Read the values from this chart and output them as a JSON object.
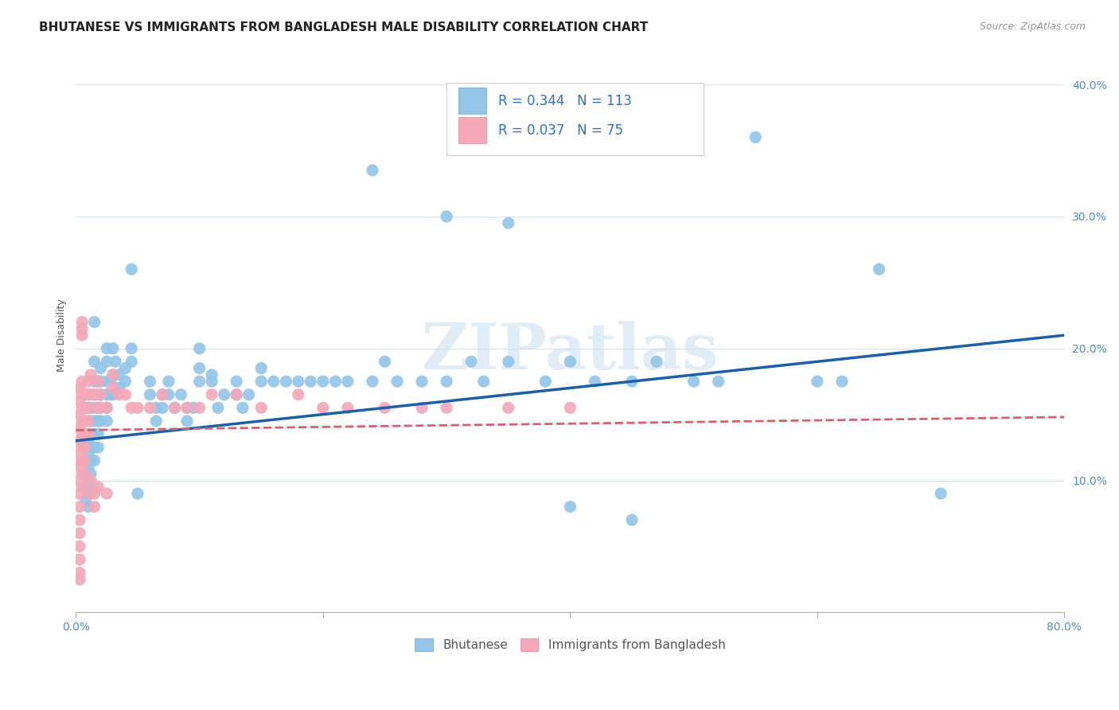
{
  "title": "BHUTANESE VS IMMIGRANTS FROM BANGLADESH MALE DISABILITY CORRELATION CHART",
  "source": "Source: ZipAtlas.com",
  "ylabel": "Male Disability",
  "xlim": [
    0.0,
    0.8
  ],
  "ylim": [
    0.0,
    0.42
  ],
  "x_ticks": [
    0.0,
    0.2,
    0.4,
    0.6,
    0.8
  ],
  "y_ticks": [
    0.0,
    0.1,
    0.2,
    0.3,
    0.4
  ],
  "watermark": "ZIPatlas",
  "blue_color": "#92c5e8",
  "pink_color": "#f4a8b8",
  "blue_line_color": "#1a5fa8",
  "pink_line_color": "#d46070",
  "title_fontsize": 11,
  "axis_label_fontsize": 9,
  "tick_fontsize": 10,
  "blue_line_x0": 0.0,
  "blue_line_y0": 0.13,
  "blue_line_x1": 0.8,
  "blue_line_y1": 0.21,
  "pink_line_x0": 0.0,
  "pink_line_y0": 0.138,
  "pink_line_x1": 0.8,
  "pink_line_y1": 0.148,
  "bhutanese_points": [
    [
      0.005,
      0.125
    ],
    [
      0.005,
      0.115
    ],
    [
      0.007,
      0.105
    ],
    [
      0.008,
      0.095
    ],
    [
      0.008,
      0.085
    ],
    [
      0.01,
      0.155
    ],
    [
      0.01,
      0.13
    ],
    [
      0.01,
      0.12
    ],
    [
      0.01,
      0.11
    ],
    [
      0.01,
      0.1
    ],
    [
      0.01,
      0.09
    ],
    [
      0.01,
      0.08
    ],
    [
      0.012,
      0.155
    ],
    [
      0.012,
      0.145
    ],
    [
      0.012,
      0.135
    ],
    [
      0.012,
      0.125
    ],
    [
      0.012,
      0.115
    ],
    [
      0.012,
      0.105
    ],
    [
      0.012,
      0.095
    ],
    [
      0.015,
      0.22
    ],
    [
      0.015,
      0.19
    ],
    [
      0.015,
      0.175
    ],
    [
      0.015,
      0.165
    ],
    [
      0.015,
      0.155
    ],
    [
      0.015,
      0.145
    ],
    [
      0.015,
      0.135
    ],
    [
      0.015,
      0.125
    ],
    [
      0.015,
      0.115
    ],
    [
      0.018,
      0.175
    ],
    [
      0.018,
      0.165
    ],
    [
      0.018,
      0.155
    ],
    [
      0.018,
      0.145
    ],
    [
      0.018,
      0.135
    ],
    [
      0.018,
      0.125
    ],
    [
      0.02,
      0.185
    ],
    [
      0.02,
      0.175
    ],
    [
      0.02,
      0.165
    ],
    [
      0.02,
      0.155
    ],
    [
      0.02,
      0.145
    ],
    [
      0.025,
      0.2
    ],
    [
      0.025,
      0.19
    ],
    [
      0.025,
      0.175
    ],
    [
      0.025,
      0.165
    ],
    [
      0.025,
      0.155
    ],
    [
      0.025,
      0.145
    ],
    [
      0.028,
      0.175
    ],
    [
      0.028,
      0.165
    ],
    [
      0.03,
      0.2
    ],
    [
      0.03,
      0.18
    ],
    [
      0.03,
      0.165
    ],
    [
      0.032,
      0.19
    ],
    [
      0.035,
      0.18
    ],
    [
      0.035,
      0.17
    ],
    [
      0.04,
      0.185
    ],
    [
      0.04,
      0.175
    ],
    [
      0.045,
      0.26
    ],
    [
      0.045,
      0.2
    ],
    [
      0.045,
      0.19
    ],
    [
      0.05,
      0.09
    ],
    [
      0.06,
      0.175
    ],
    [
      0.06,
      0.165
    ],
    [
      0.065,
      0.155
    ],
    [
      0.065,
      0.145
    ],
    [
      0.07,
      0.165
    ],
    [
      0.07,
      0.155
    ],
    [
      0.075,
      0.175
    ],
    [
      0.075,
      0.165
    ],
    [
      0.08,
      0.155
    ],
    [
      0.085,
      0.165
    ],
    [
      0.09,
      0.155
    ],
    [
      0.09,
      0.145
    ],
    [
      0.095,
      0.155
    ],
    [
      0.1,
      0.2
    ],
    [
      0.1,
      0.185
    ],
    [
      0.1,
      0.175
    ],
    [
      0.11,
      0.18
    ],
    [
      0.11,
      0.175
    ],
    [
      0.115,
      0.155
    ],
    [
      0.12,
      0.165
    ],
    [
      0.13,
      0.175
    ],
    [
      0.13,
      0.165
    ],
    [
      0.135,
      0.155
    ],
    [
      0.14,
      0.165
    ],
    [
      0.15,
      0.175
    ],
    [
      0.15,
      0.185
    ],
    [
      0.16,
      0.175
    ],
    [
      0.17,
      0.175
    ],
    [
      0.18,
      0.175
    ],
    [
      0.19,
      0.175
    ],
    [
      0.2,
      0.175
    ],
    [
      0.21,
      0.175
    ],
    [
      0.22,
      0.175
    ],
    [
      0.24,
      0.175
    ],
    [
      0.25,
      0.19
    ],
    [
      0.26,
      0.175
    ],
    [
      0.28,
      0.175
    ],
    [
      0.3,
      0.175
    ],
    [
      0.32,
      0.19
    ],
    [
      0.33,
      0.175
    ],
    [
      0.35,
      0.19
    ],
    [
      0.38,
      0.175
    ],
    [
      0.4,
      0.19
    ],
    [
      0.42,
      0.175
    ],
    [
      0.45,
      0.175
    ],
    [
      0.47,
      0.19
    ],
    [
      0.5,
      0.175
    ],
    [
      0.52,
      0.175
    ],
    [
      0.24,
      0.335
    ],
    [
      0.3,
      0.3
    ],
    [
      0.35,
      0.295
    ],
    [
      0.6,
      0.175
    ],
    [
      0.62,
      0.175
    ],
    [
      0.55,
      0.36
    ],
    [
      0.65,
      0.26
    ],
    [
      0.7,
      0.09
    ],
    [
      0.4,
      0.08
    ],
    [
      0.45,
      0.07
    ]
  ],
  "bangladesh_points": [
    [
      0.003,
      0.17
    ],
    [
      0.003,
      0.16
    ],
    [
      0.003,
      0.15
    ],
    [
      0.003,
      0.14
    ],
    [
      0.003,
      0.13
    ],
    [
      0.003,
      0.12
    ],
    [
      0.003,
      0.11
    ],
    [
      0.003,
      0.1
    ],
    [
      0.003,
      0.09
    ],
    [
      0.003,
      0.08
    ],
    [
      0.003,
      0.07
    ],
    [
      0.003,
      0.06
    ],
    [
      0.003,
      0.05
    ],
    [
      0.003,
      0.04
    ],
    [
      0.003,
      0.03
    ],
    [
      0.005,
      0.215
    ],
    [
      0.005,
      0.21
    ],
    [
      0.005,
      0.175
    ],
    [
      0.005,
      0.165
    ],
    [
      0.005,
      0.155
    ],
    [
      0.005,
      0.145
    ],
    [
      0.005,
      0.135
    ],
    [
      0.005,
      0.125
    ],
    [
      0.005,
      0.115
    ],
    [
      0.005,
      0.105
    ],
    [
      0.005,
      0.095
    ],
    [
      0.007,
      0.165
    ],
    [
      0.007,
      0.155
    ],
    [
      0.007,
      0.145
    ],
    [
      0.007,
      0.135
    ],
    [
      0.007,
      0.125
    ],
    [
      0.007,
      0.115
    ],
    [
      0.007,
      0.105
    ],
    [
      0.01,
      0.175
    ],
    [
      0.01,
      0.165
    ],
    [
      0.01,
      0.155
    ],
    [
      0.01,
      0.145
    ],
    [
      0.01,
      0.135
    ],
    [
      0.012,
      0.18
    ],
    [
      0.012,
      0.165
    ],
    [
      0.012,
      0.1
    ],
    [
      0.012,
      0.09
    ],
    [
      0.015,
      0.165
    ],
    [
      0.018,
      0.175
    ],
    [
      0.018,
      0.155
    ],
    [
      0.02,
      0.165
    ],
    [
      0.02,
      0.155
    ],
    [
      0.025,
      0.09
    ],
    [
      0.025,
      0.155
    ],
    [
      0.03,
      0.18
    ],
    [
      0.03,
      0.17
    ],
    [
      0.035,
      0.165
    ],
    [
      0.04,
      0.165
    ],
    [
      0.045,
      0.155
    ],
    [
      0.05,
      0.155
    ],
    [
      0.06,
      0.155
    ],
    [
      0.07,
      0.165
    ],
    [
      0.08,
      0.155
    ],
    [
      0.09,
      0.155
    ],
    [
      0.1,
      0.155
    ],
    [
      0.11,
      0.165
    ],
    [
      0.13,
      0.165
    ],
    [
      0.15,
      0.155
    ],
    [
      0.18,
      0.165
    ],
    [
      0.2,
      0.155
    ],
    [
      0.22,
      0.155
    ],
    [
      0.25,
      0.155
    ],
    [
      0.28,
      0.155
    ],
    [
      0.3,
      0.155
    ],
    [
      0.35,
      0.155
    ],
    [
      0.4,
      0.155
    ],
    [
      0.005,
      0.22
    ],
    [
      0.003,
      0.025
    ],
    [
      0.018,
      0.095
    ],
    [
      0.015,
      0.09
    ],
    [
      0.015,
      0.08
    ]
  ]
}
